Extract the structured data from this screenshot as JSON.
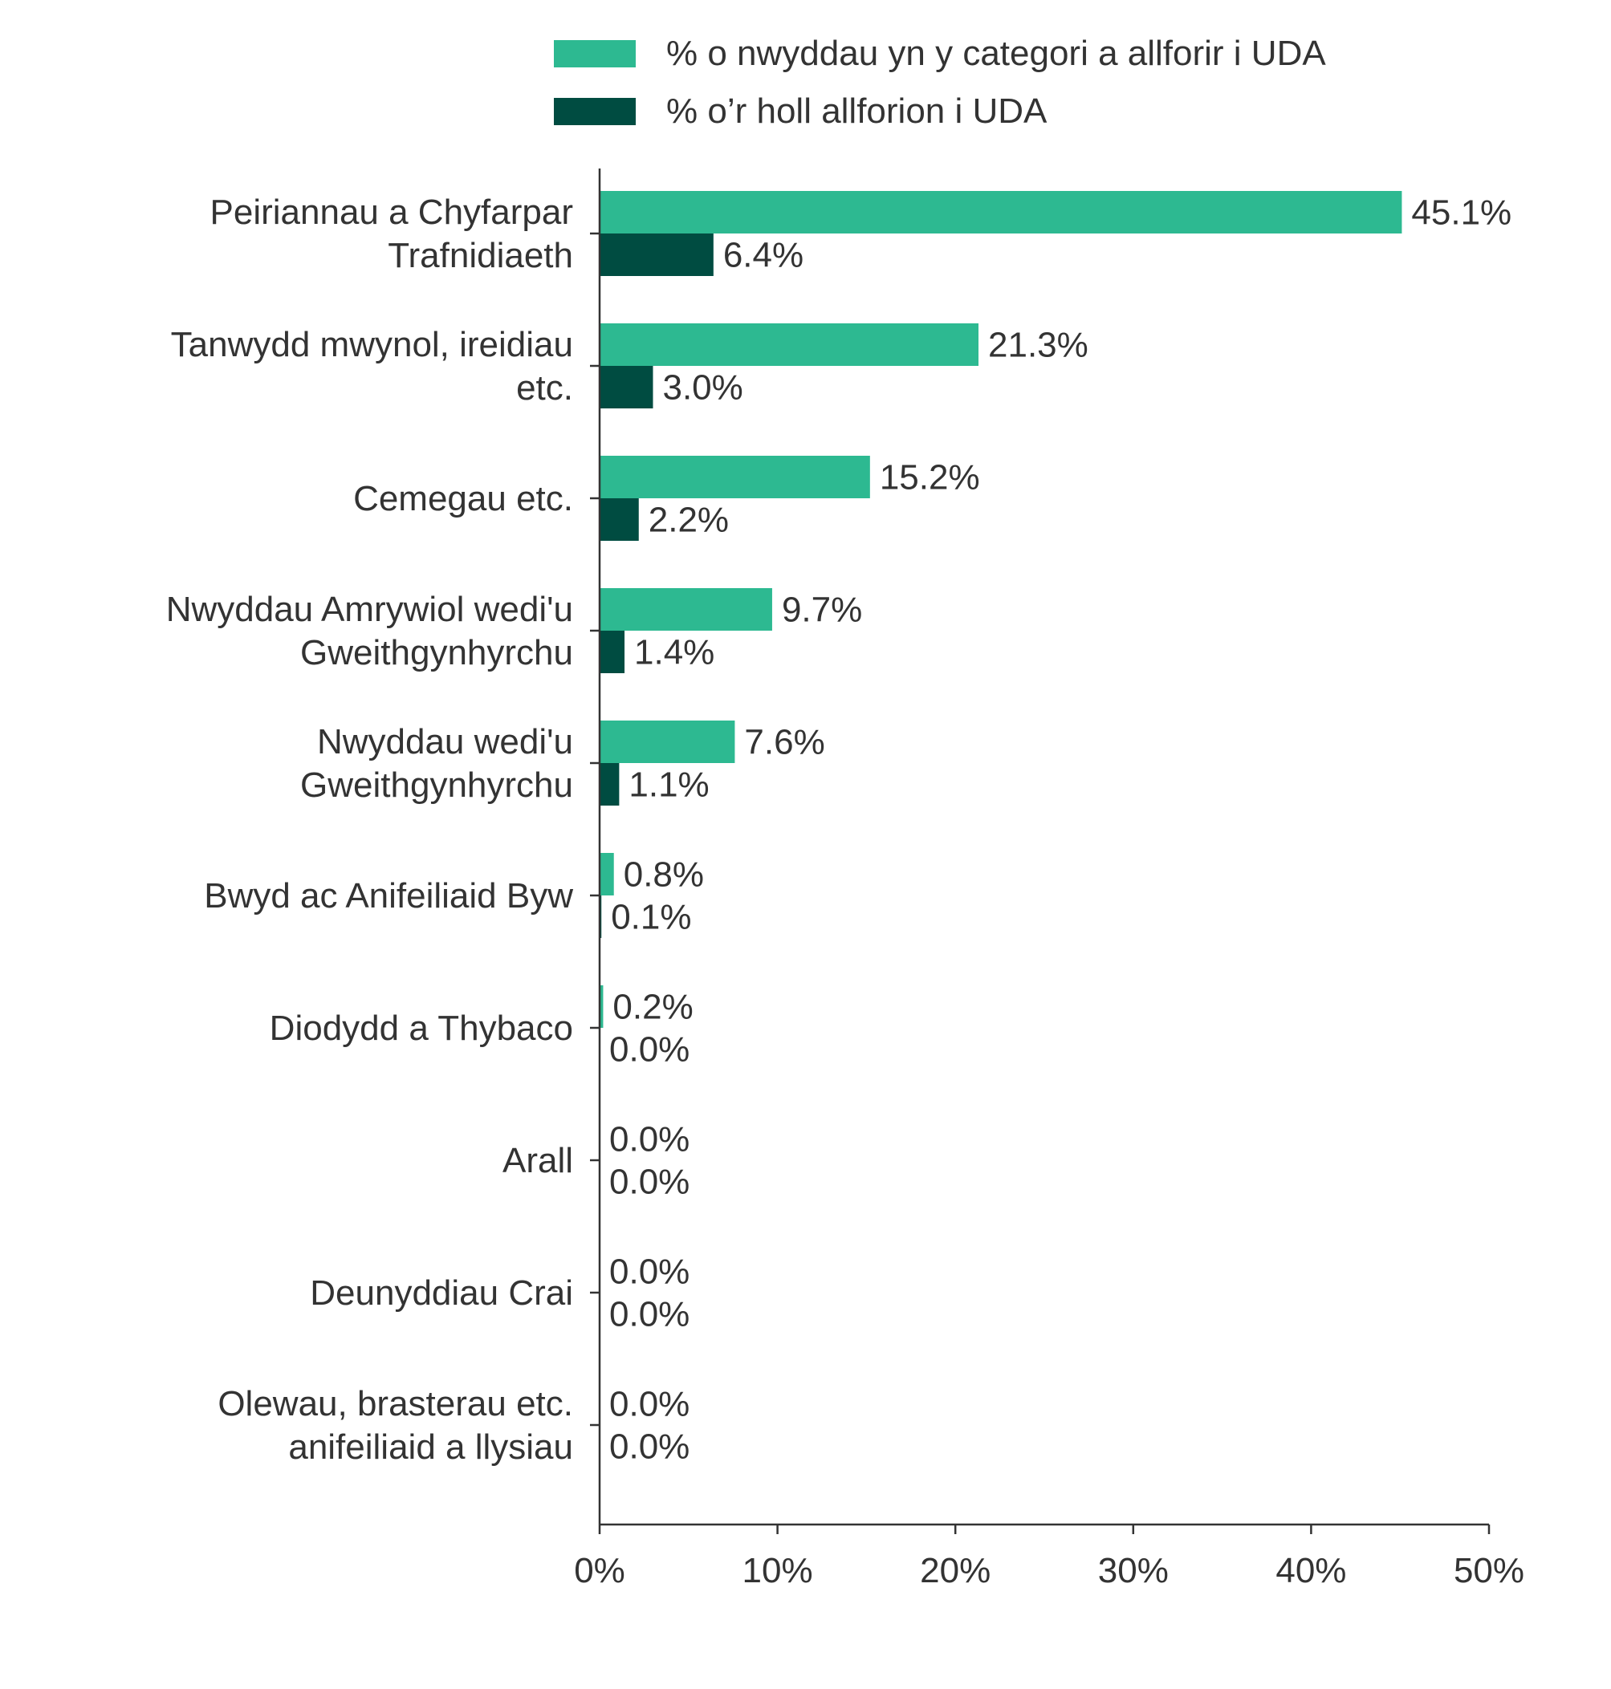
{
  "chart_data": {
    "type": "bar",
    "orientation": "horizontal",
    "title": "",
    "xlabel": "",
    "ylabel": "",
    "xlim": [
      0,
      50
    ],
    "x_ticks": [
      0,
      10,
      20,
      30,
      40,
      50
    ],
    "x_tick_labels": [
      "0%",
      "10%",
      "20%",
      "30%",
      "40%",
      "50%"
    ],
    "grid": false,
    "legend_position": "top-right",
    "categories": [
      [
        "Peiriannau a Chyfarpar",
        "Trafnidiaeth"
      ],
      [
        "Tanwydd mwynol, ireidiau",
        "etc."
      ],
      [
        "Cemegau etc."
      ],
      [
        "Nwyddau Amrywiol wedi'u",
        "Gweithgynhyrchu"
      ],
      [
        "Nwyddau wedi'u",
        "Gweithgynhyrchu"
      ],
      [
        "Bwyd ac Anifeiliaid Byw"
      ],
      [
        "Diodydd a Thybaco"
      ],
      [
        "Arall"
      ],
      [
        "Deunyddiau Crai"
      ],
      [
        "Olewau, brasterau etc.",
        "anifeiliaid a llysiau"
      ]
    ],
    "series": [
      {
        "name": "% o nwyddau yn y categori a allforir i UDA",
        "color": "#2db991",
        "values": [
          45.1,
          21.3,
          15.2,
          9.7,
          7.6,
          0.8,
          0.2,
          0.0,
          0.0,
          0.0
        ],
        "labels": [
          "45.1%",
          "21.3%",
          "15.2%",
          "9.7%",
          "7.6%",
          "0.8%",
          "0.2%",
          "0.0%",
          "0.0%",
          "0.0%"
        ]
      },
      {
        "name": "% o’r holl allforion i UDA",
        "color": "#004c41",
        "values": [
          6.4,
          3.0,
          2.2,
          1.4,
          1.1,
          0.1,
          0.0,
          0.0,
          0.0,
          0.0
        ],
        "labels": [
          "6.4%",
          "3.0%",
          "2.2%",
          "1.4%",
          "1.1%",
          "0.1%",
          "0.0%",
          "0.0%",
          "0.0%",
          "0.0%"
        ]
      }
    ]
  }
}
